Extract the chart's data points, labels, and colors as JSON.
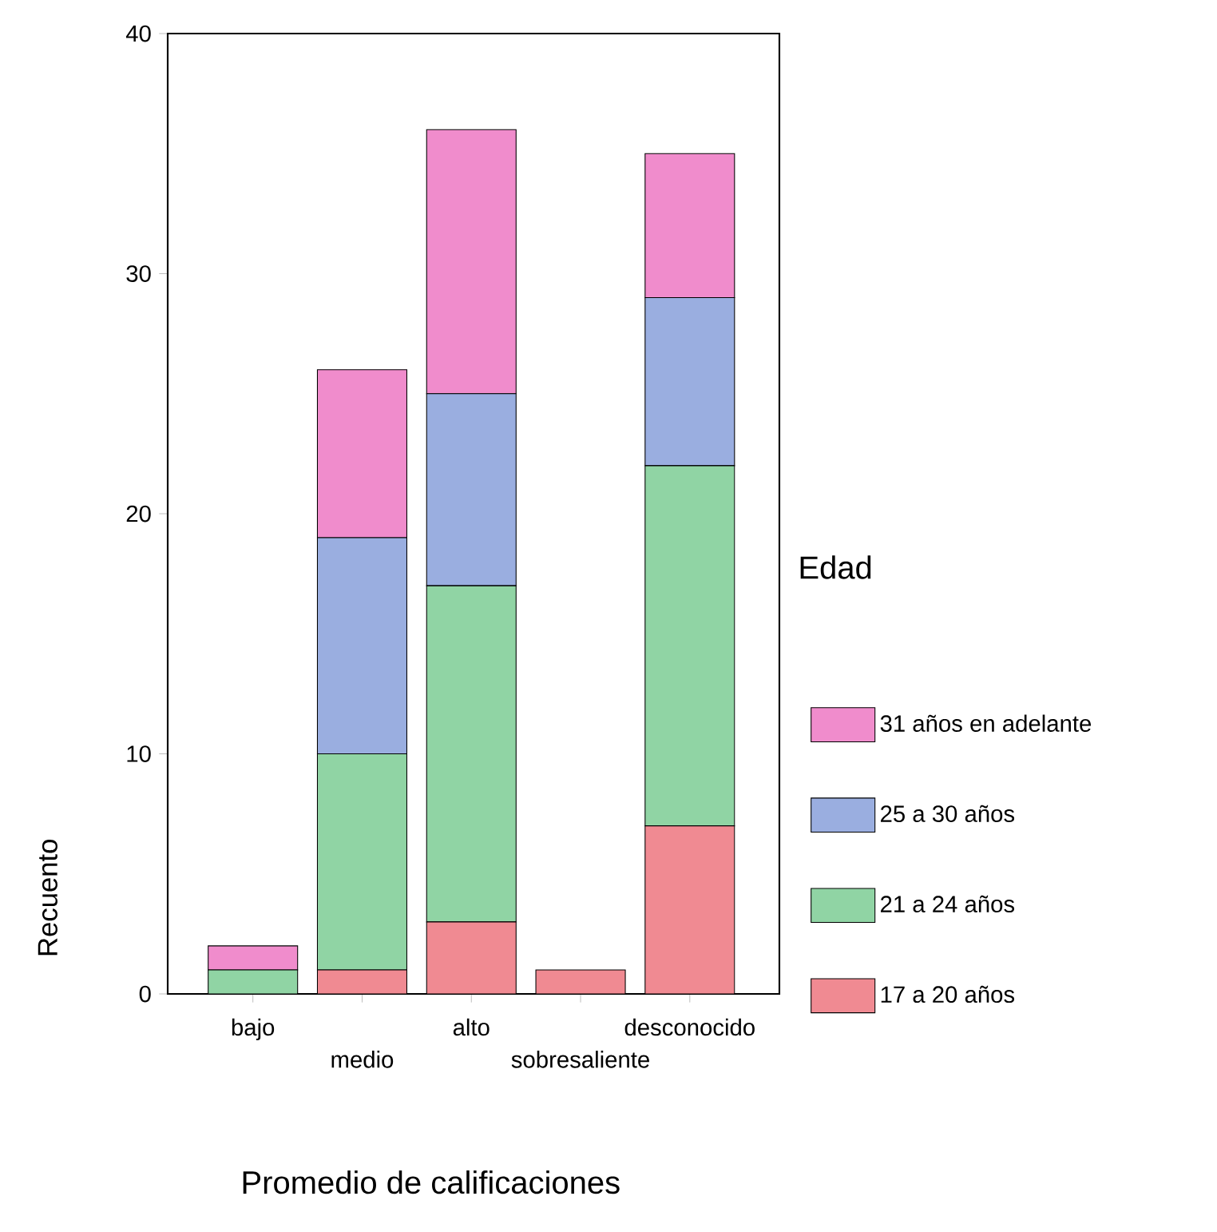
{
  "chart_data": {
    "type": "bar",
    "stacked": true,
    "xlabel": "Promedio de calificaciones",
    "ylabel": "Recuento",
    "legend_title": "Edad",
    "legend": "right",
    "categories": [
      "bajo",
      "medio",
      "alto",
      "sobresaliente",
      "desconocido"
    ],
    "ylim": [
      0,
      40
    ],
    "yticks": [
      0,
      10,
      20,
      30,
      40
    ],
    "grid": false,
    "series": [
      {
        "name": "17 a 20 años",
        "color": "#f08a92",
        "values": [
          0,
          1,
          3,
          1,
          7
        ]
      },
      {
        "name": "21 a 24 años",
        "color": "#90d4a4",
        "values": [
          1,
          9,
          14,
          0,
          15
        ]
      },
      {
        "name": "25 a 30 años",
        "color": "#9aaee0",
        "values": [
          0,
          9,
          8,
          0,
          7
        ]
      },
      {
        "name": "31 años en adelante",
        "color": "#f08ccc",
        "values": [
          1,
          7,
          11,
          0,
          6
        ]
      }
    ]
  }
}
